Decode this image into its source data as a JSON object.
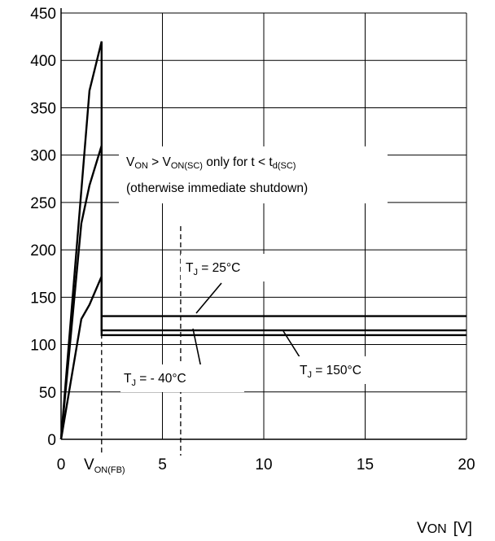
{
  "chart_data": {
    "type": "line",
    "title": "",
    "xlabel": "V",
    "xlabel_sub": "ON",
    "xlabel_unit": "[V]",
    "ylabel": "",
    "xlim": [
      0,
      20
    ],
    "ylim": [
      0,
      450
    ],
    "x_ticks": [
      0,
      5,
      10,
      15,
      20
    ],
    "y_ticks": [
      0,
      50,
      100,
      150,
      200,
      250,
      300,
      350,
      400,
      450
    ],
    "grid": true,
    "legend": "none",
    "series": [
      {
        "label": "-40",
        "points": [
          [
            0,
            0
          ],
          [
            1,
            228
          ],
          [
            1.4,
            268
          ],
          [
            2,
            310
          ],
          [
            2,
            115
          ],
          [
            20,
            115
          ]
        ]
      },
      {
        "label": "25",
        "points": [
          [
            0,
            0
          ],
          [
            1.4,
            368
          ],
          [
            2,
            420
          ],
          [
            2,
            130
          ],
          [
            20,
            130
          ]
        ]
      },
      {
        "label": "150",
        "points": [
          [
            0,
            0
          ],
          [
            1,
            127
          ],
          [
            1.4,
            142
          ],
          [
            2,
            172
          ],
          [
            2,
            110
          ],
          [
            20,
            110
          ]
        ]
      }
    ],
    "vlines": [
      {
        "x": 2,
        "label_main": "V",
        "label_sub": "ON(FB)"
      },
      {
        "x": 5.9,
        "ymax": 225
      }
    ],
    "annotations": {
      "sc_line1_a": "V",
      "sc_line1_a_sub": "ON",
      "sc_line1_b": " > V",
      "sc_line1_b_sub": "ON(SC)",
      "sc_line1_c": " only for t < t",
      "sc_line1_c_sub": "d(SC)",
      "sc_line2": "(otherwise immediate shutdown)",
      "tj25_main": "T",
      "tj25_sub": "J",
      "tj25_val": " = 25°C",
      "tjm40_main": "T",
      "tjm40_sub": "J",
      "tjm40_val": " = - 40°C",
      "tj150_main": "T",
      "tj150_sub": "J",
      "tj150_val": " = 150°C"
    }
  }
}
